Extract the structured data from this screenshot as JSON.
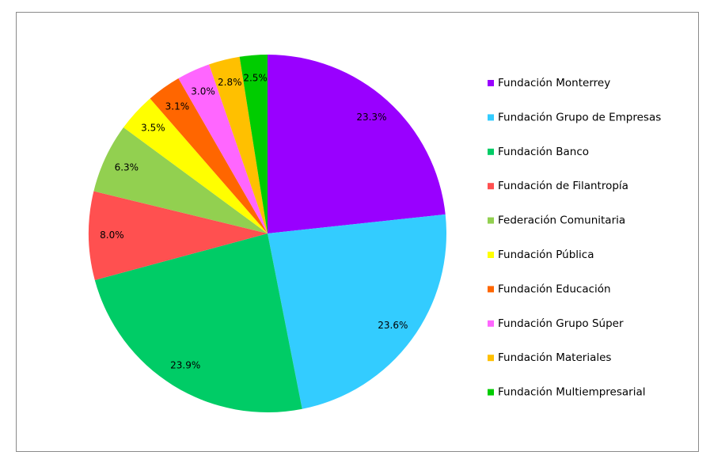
{
  "chart_data": {
    "type": "pie",
    "categories": [
      "Fundación Monterrey",
      "Fundación Grupo de Empresas",
      "Fundación Banco",
      "Fundación de Filantropía",
      "Federación Comunitaria",
      "Fundación Pública",
      "Fundación Educación",
      "Fundación Grupo Súper",
      "Fundación Materiales",
      "Fundación Multiempresarial"
    ],
    "values": [
      23.3,
      23.6,
      23.9,
      8.0,
      6.3,
      3.5,
      3.1,
      3.0,
      2.8,
      2.5
    ],
    "value_labels": [
      "23.3%",
      "23.6%",
      "23.9%",
      "8.0%",
      "6.3%",
      "3.5%",
      "3.1%",
      "3.0%",
      "2.8%",
      "2.5%"
    ],
    "colors": [
      "#9900ff",
      "#33ccff",
      "#00cc66",
      "#ff5050",
      "#92d050",
      "#ffff00",
      "#ff6600",
      "#ff66ff",
      "#ffc000",
      "#00cc00"
    ],
    "legend": "right"
  }
}
